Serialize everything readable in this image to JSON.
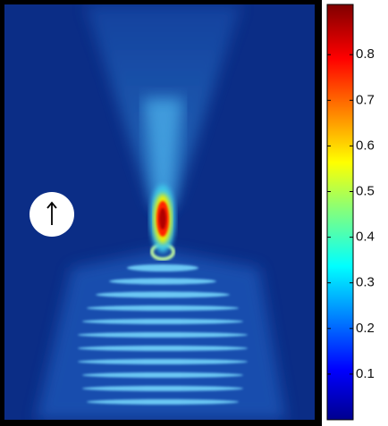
{
  "chart_data": {
    "type": "heatmap",
    "colormap": "jet",
    "clim": [
      0,
      0.91
    ],
    "cticks": [
      0.1,
      0.2,
      0.3,
      0.4,
      0.5,
      0.6,
      0.7,
      0.8
    ]
  }
}
